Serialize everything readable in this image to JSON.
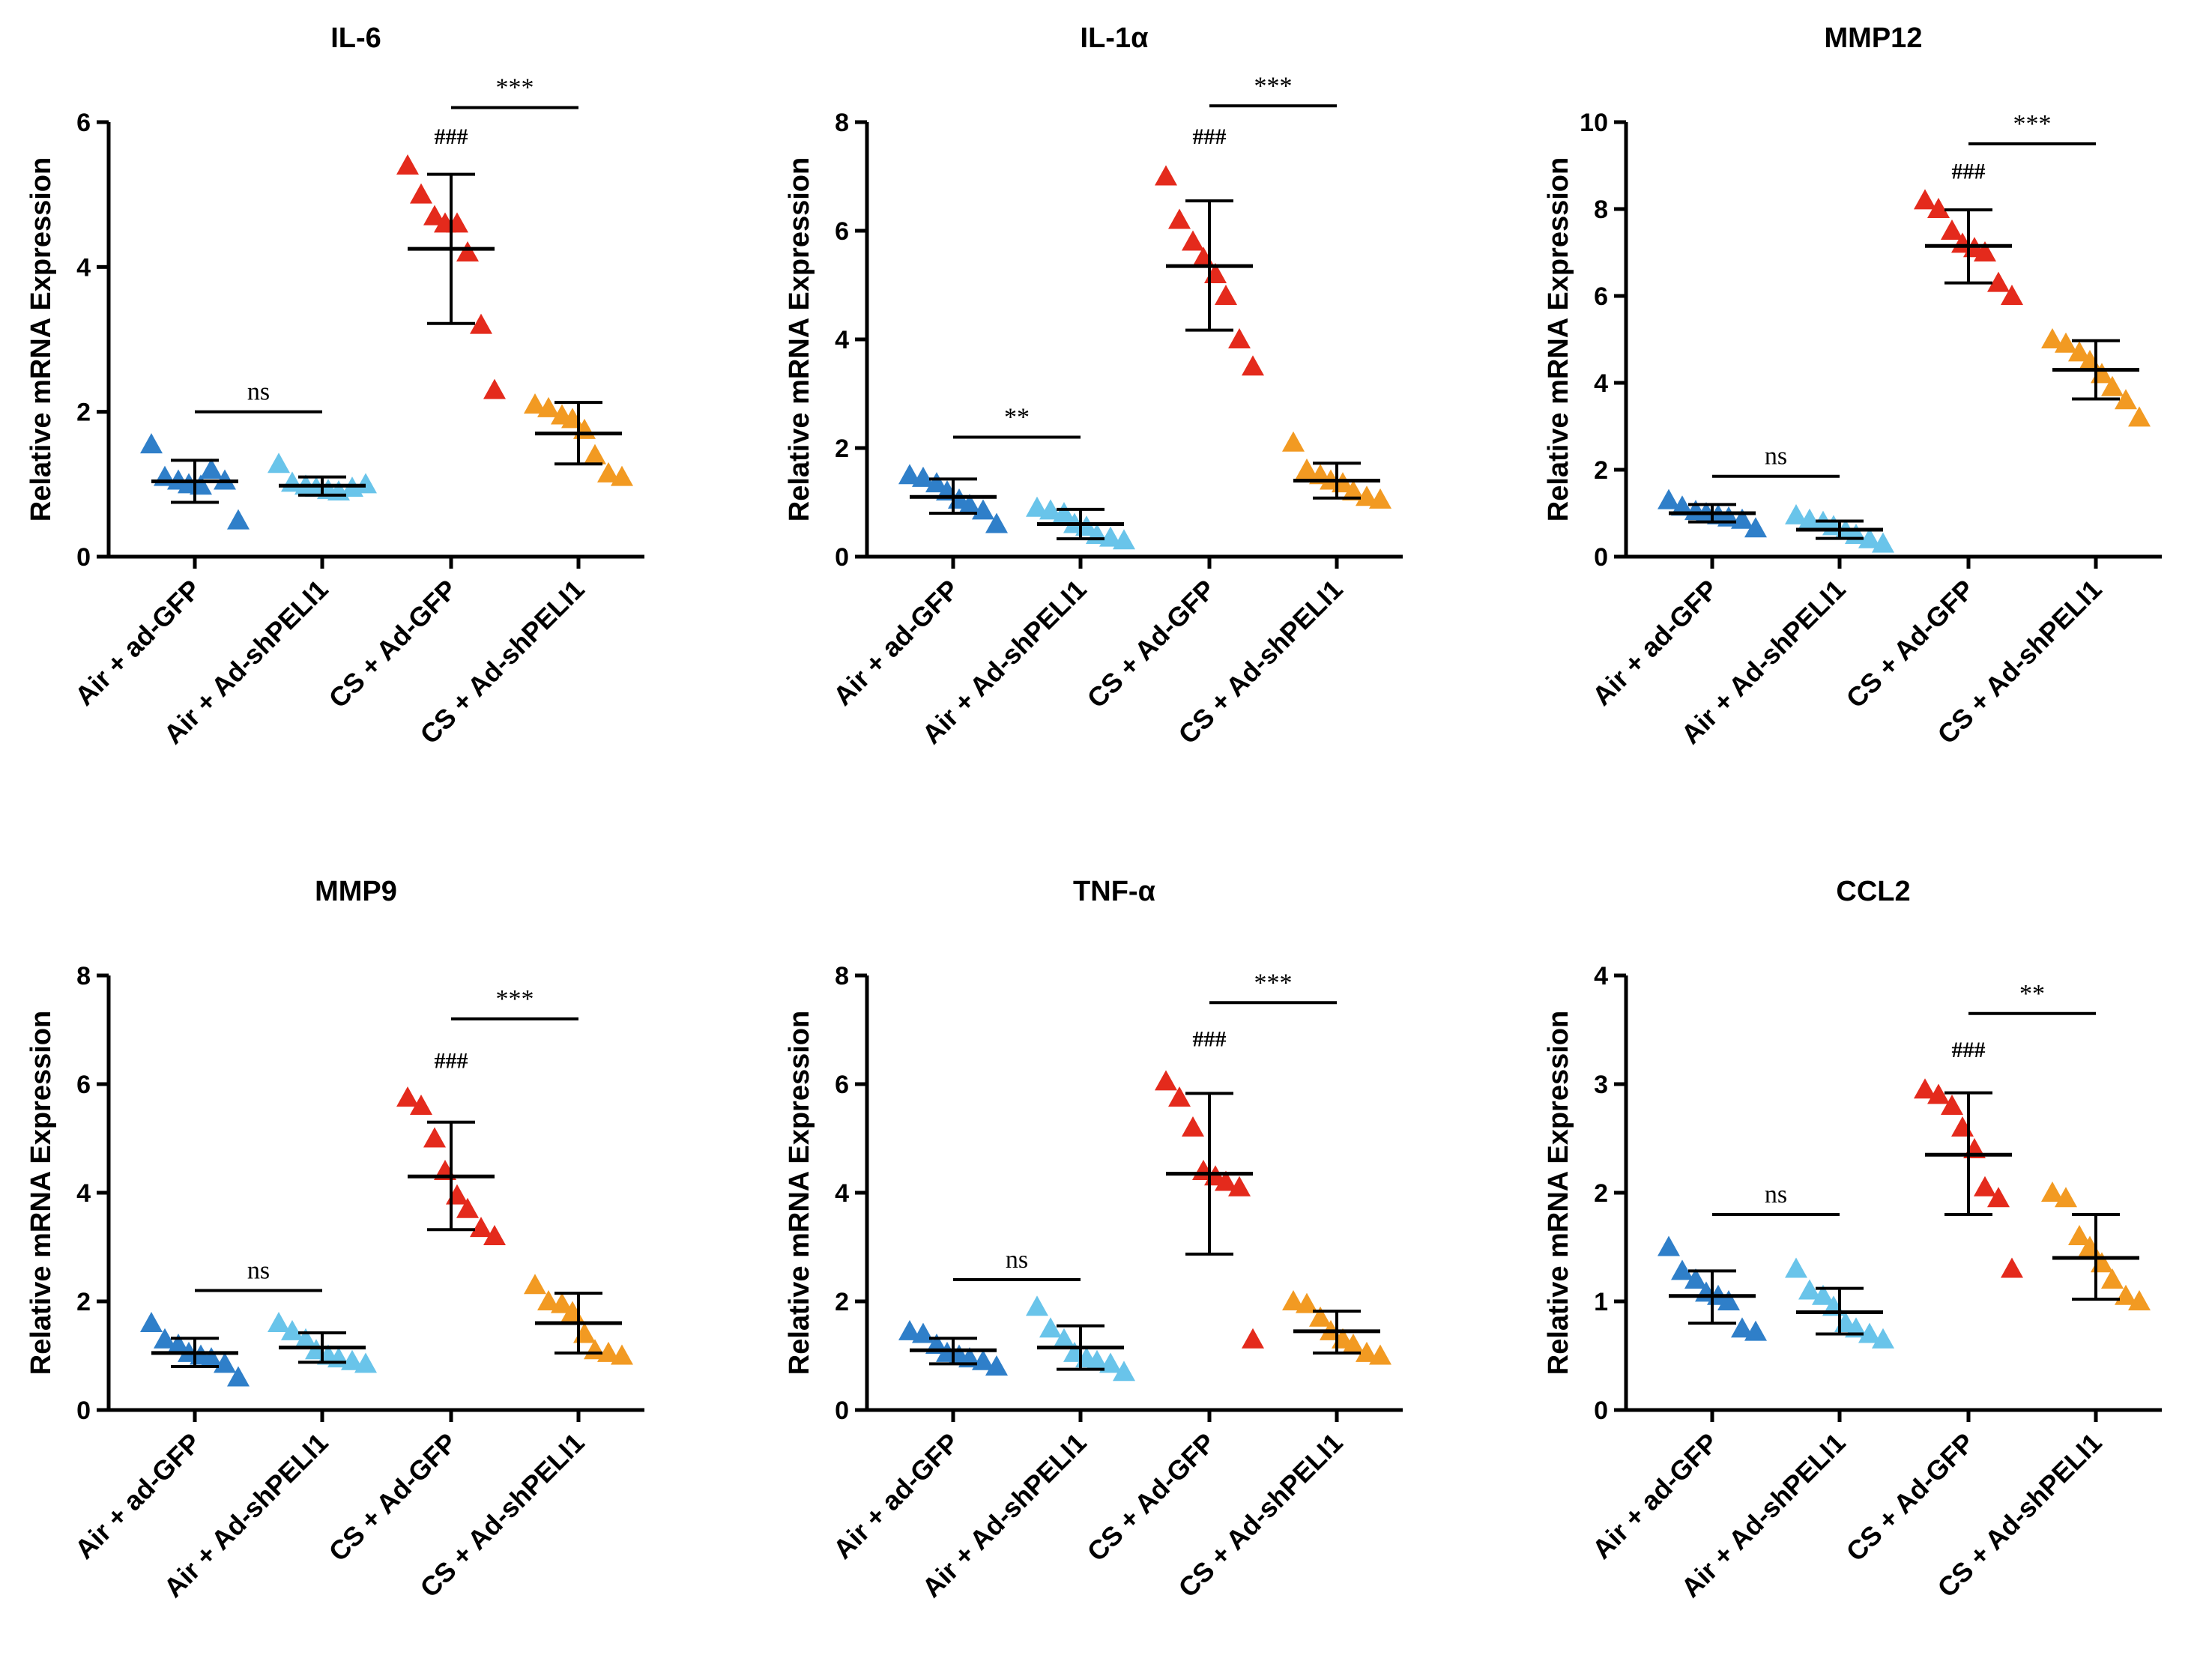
{
  "colors": {
    "air_gfp": "#2f7fc9",
    "air_sh": "#69c4ea",
    "cs_gfp": "#e42a1c",
    "cs_sh": "#f29a22"
  },
  "chart_data": [
    {
      "type": "scatter",
      "title": "IL-6",
      "ylabel": "Relative mRNA Expression",
      "ylim": [
        0,
        6
      ],
      "yticks": [
        0,
        2,
        4,
        6
      ],
      "categories": [
        "Air + ad-GFP",
        "Air + Ad-shPELI1",
        "CS + Ad-GFP",
        "CS + Ad-shPELI1"
      ],
      "series": [
        {
          "name": "Air + ad-GFP",
          "color_key": "air_gfp",
          "points": [
            1.55,
            1.1,
            1.05,
            1.0,
            0.98,
            1.2,
            1.05,
            0.5
          ],
          "mean": 1.04,
          "sd": [
            0.75,
            1.33
          ]
        },
        {
          "name": "Air + Ad-shPELI1",
          "color_key": "air_sh",
          "points": [
            1.28,
            1.02,
            0.98,
            0.95,
            0.92,
            0.9,
            0.95,
            1.0
          ],
          "mean": 0.98,
          "sd": [
            0.85,
            1.1
          ]
        },
        {
          "name": "CS + Ad-GFP",
          "color_key": "cs_gfp",
          "points": [
            5.4,
            5.0,
            4.7,
            4.6,
            4.6,
            4.2,
            3.2,
            2.3
          ],
          "mean": 4.25,
          "sd": [
            3.22,
            5.28
          ]
        },
        {
          "name": "CS + Ad-shPELI1",
          "color_key": "cs_sh",
          "points": [
            2.1,
            2.05,
            1.95,
            1.9,
            1.75,
            1.4,
            1.15,
            1.1
          ],
          "mean": 1.7,
          "sd": [
            1.28,
            2.13
          ]
        }
      ],
      "comparisons": [
        {
          "from": 0,
          "to": 1,
          "label": "ns",
          "y": 2.0
        },
        {
          "from": 2,
          "to": 3,
          "label": "***",
          "y": 6.2
        }
      ],
      "hash_label": "###",
      "hash_group": 2,
      "hash_y": 5.7
    },
    {
      "type": "scatter",
      "title": "IL-1α",
      "ylabel": "Relative mRNA Expression",
      "ylim": [
        0,
        8
      ],
      "yticks": [
        0,
        2,
        4,
        6,
        8
      ],
      "categories": [
        "Air + ad-GFP",
        "Air + Ad-shPELI1",
        "CS + Ad-GFP",
        "CS + Ad-shPELI1"
      ],
      "series": [
        {
          "name": "Air + ad-GFP",
          "color_key": "air_gfp",
          "points": [
            1.5,
            1.45,
            1.35,
            1.2,
            1.05,
            0.95,
            0.85,
            0.6
          ],
          "mean": 1.1,
          "sd": [
            0.8,
            1.43
          ]
        },
        {
          "name": "Air + Ad-shPELI1",
          "color_key": "air_sh",
          "points": [
            0.9,
            0.85,
            0.8,
            0.6,
            0.55,
            0.4,
            0.35,
            0.3
          ],
          "mean": 0.6,
          "sd": [
            0.33,
            0.87
          ]
        },
        {
          "name": "CS + Ad-GFP",
          "color_key": "cs_gfp",
          "points": [
            7.0,
            6.2,
            5.8,
            5.5,
            5.2,
            4.8,
            4.0,
            3.5
          ],
          "mean": 5.35,
          "sd": [
            4.17,
            6.55
          ]
        },
        {
          "name": "CS + Ad-shPELI1",
          "color_key": "cs_sh",
          "points": [
            2.1,
            1.6,
            1.5,
            1.4,
            1.35,
            1.2,
            1.1,
            1.05
          ],
          "mean": 1.4,
          "sd": [
            1.08,
            1.72
          ]
        }
      ],
      "comparisons": [
        {
          "from": 0,
          "to": 1,
          "label": "**",
          "y": 2.2
        },
        {
          "from": 2,
          "to": 3,
          "label": "***",
          "y": 8.3
        }
      ],
      "hash_label": "###",
      "hash_group": 2,
      "hash_y": 7.6
    },
    {
      "type": "scatter",
      "title": "MMP12",
      "ylabel": "Relative mRNA Expression",
      "ylim": [
        0,
        10
      ],
      "yticks": [
        0,
        2,
        4,
        6,
        8,
        10
      ],
      "categories": [
        "Air + ad-GFP",
        "Air + Ad-shPELI1",
        "CS + Ad-GFP",
        "CS + Ad-shPELI1"
      ],
      "series": [
        {
          "name": "Air + ad-GFP",
          "color_key": "air_gfp",
          "points": [
            1.3,
            1.15,
            1.05,
            1.0,
            0.95,
            0.9,
            0.85,
            0.65
          ],
          "mean": 1.0,
          "sd": [
            0.8,
            1.2
          ]
        },
        {
          "name": "Air + Ad-shPELI1",
          "color_key": "air_sh",
          "points": [
            0.95,
            0.85,
            0.8,
            0.7,
            0.6,
            0.5,
            0.4,
            0.3
          ],
          "mean": 0.62,
          "sd": [
            0.42,
            0.82
          ]
        },
        {
          "name": "CS + Ad-GFP",
          "color_key": "cs_gfp",
          "points": [
            8.2,
            8.0,
            7.5,
            7.2,
            7.1,
            7.0,
            6.3,
            6.0
          ],
          "mean": 7.15,
          "sd": [
            6.3,
            7.98
          ]
        },
        {
          "name": "CS + Ad-shPELI1",
          "color_key": "cs_sh",
          "points": [
            5.0,
            4.9,
            4.7,
            4.5,
            4.2,
            3.9,
            3.6,
            3.2
          ],
          "mean": 4.3,
          "sd": [
            3.63,
            4.97
          ]
        }
      ],
      "comparisons": [
        {
          "from": 0,
          "to": 1,
          "label": "ns",
          "y": 1.85
        },
        {
          "from": 2,
          "to": 3,
          "label": "***",
          "y": 9.5
        }
      ],
      "hash_label": "###",
      "hash_group": 2,
      "hash_y": 8.7
    },
    {
      "type": "scatter",
      "title": "MMP9",
      "ylabel": "Relative mRNA Expression",
      "ylim": [
        0,
        8
      ],
      "yticks": [
        0,
        2,
        4,
        6,
        8
      ],
      "categories": [
        "Air + ad-GFP",
        "Air + Ad-shPELI1",
        "CS + Ad-GFP",
        "CS + Ad-shPELI1"
      ],
      "series": [
        {
          "name": "Air + ad-GFP",
          "color_key": "air_gfp",
          "points": [
            1.6,
            1.3,
            1.2,
            1.05,
            1.0,
            0.95,
            0.85,
            0.6
          ],
          "mean": 1.05,
          "sd": [
            0.8,
            1.32
          ]
        },
        {
          "name": "Air + Ad-shPELI1",
          "color_key": "air_sh",
          "points": [
            1.6,
            1.45,
            1.3,
            1.1,
            1.0,
            0.95,
            0.9,
            0.85
          ],
          "mean": 1.15,
          "sd": [
            0.88,
            1.42
          ]
        },
        {
          "name": "CS + Ad-GFP",
          "color_key": "cs_gfp",
          "points": [
            5.75,
            5.6,
            5.0,
            4.4,
            3.95,
            3.7,
            3.35,
            3.2
          ],
          "mean": 4.3,
          "sd": [
            3.32,
            5.3
          ]
        },
        {
          "name": "CS + Ad-shPELI1",
          "color_key": "cs_sh",
          "points": [
            2.3,
            2.0,
            1.95,
            1.8,
            1.4,
            1.1,
            1.05,
            1.0
          ],
          "mean": 1.6,
          "sd": [
            1.05,
            2.15
          ]
        }
      ],
      "comparisons": [
        {
          "from": 0,
          "to": 1,
          "label": "ns",
          "y": 2.2
        },
        {
          "from": 2,
          "to": 3,
          "label": "***",
          "y": 7.2
        }
      ],
      "hash_label": "###",
      "hash_group": 2,
      "hash_y": 6.3
    },
    {
      "type": "scatter",
      "title": "TNF-α",
      "ylabel": "Relative mRNA Expression",
      "ylim": [
        0,
        8
      ],
      "yticks": [
        0,
        2,
        4,
        6,
        8
      ],
      "categories": [
        "Air + ad-GFP",
        "Air + Ad-shPELI1",
        "CS + Ad-GFP",
        "CS + Ad-shPELI1"
      ],
      "series": [
        {
          "name": "Air + ad-GFP",
          "color_key": "air_gfp",
          "points": [
            1.45,
            1.4,
            1.2,
            1.05,
            1.0,
            0.95,
            0.9,
            0.8
          ],
          "mean": 1.1,
          "sd": [
            0.85,
            1.32
          ]
        },
        {
          "name": "Air + Ad-shPELI1",
          "color_key": "air_sh",
          "points": [
            1.9,
            1.5,
            1.3,
            1.05,
            0.95,
            0.9,
            0.85,
            0.7
          ],
          "mean": 1.15,
          "sd": [
            0.75,
            1.55
          ]
        },
        {
          "name": "CS + Ad-GFP",
          "color_key": "cs_gfp",
          "points": [
            6.05,
            5.75,
            5.2,
            4.4,
            4.3,
            4.2,
            4.1,
            1.3
          ],
          "mean": 4.35,
          "sd": [
            2.87,
            5.83
          ]
        },
        {
          "name": "CS + Ad-shPELI1",
          "color_key": "cs_sh",
          "points": [
            2.0,
            1.95,
            1.7,
            1.45,
            1.3,
            1.2,
            1.05,
            1.0
          ],
          "mean": 1.45,
          "sd": [
            1.05,
            1.82
          ]
        }
      ],
      "comparisons": [
        {
          "from": 0,
          "to": 1,
          "label": "ns",
          "y": 2.4
        },
        {
          "from": 2,
          "to": 3,
          "label": "***",
          "y": 7.5
        }
      ],
      "hash_label": "###",
      "hash_group": 2,
      "hash_y": 6.7
    },
    {
      "type": "scatter",
      "title": "CCL2",
      "ylabel": "Relative mRNA Expression",
      "ylim": [
        0,
        4
      ],
      "yticks": [
        0,
        1,
        2,
        3,
        4
      ],
      "categories": [
        "Air + ad-GFP",
        "Air + Ad-shPELI1",
        "CS + Ad-GFP",
        "CS + Ad-shPELI1"
      ],
      "series": [
        {
          "name": "Air + ad-GFP",
          "color_key": "air_gfp",
          "points": [
            1.5,
            1.28,
            1.2,
            1.08,
            1.05,
            1.0,
            0.75,
            0.72
          ],
          "mean": 1.05,
          "sd": [
            0.8,
            1.28
          ]
        },
        {
          "name": "Air + Ad-shPELI1",
          "color_key": "air_sh",
          "points": [
            1.3,
            1.1,
            1.05,
            0.95,
            0.8,
            0.75,
            0.7,
            0.65
          ],
          "mean": 0.9,
          "sd": [
            0.7,
            1.12
          ]
        },
        {
          "name": "CS + Ad-GFP",
          "color_key": "cs_gfp",
          "points": [
            2.95,
            2.9,
            2.8,
            2.6,
            2.4,
            2.05,
            1.95,
            1.3
          ],
          "mean": 2.35,
          "sd": [
            1.8,
            2.92
          ]
        },
        {
          "name": "CS + Ad-shPELI1",
          "color_key": "cs_sh",
          "points": [
            2.0,
            1.95,
            1.6,
            1.5,
            1.35,
            1.2,
            1.05,
            1.0
          ],
          "mean": 1.4,
          "sd": [
            1.02,
            1.8
          ]
        }
      ],
      "comparisons": [
        {
          "from": 0,
          "to": 1,
          "label": "ns",
          "y": 1.8
        },
        {
          "from": 2,
          "to": 3,
          "label": "**",
          "y": 3.65
        }
      ],
      "hash_label": "###",
      "hash_group": 2,
      "hash_y": 3.25
    }
  ]
}
